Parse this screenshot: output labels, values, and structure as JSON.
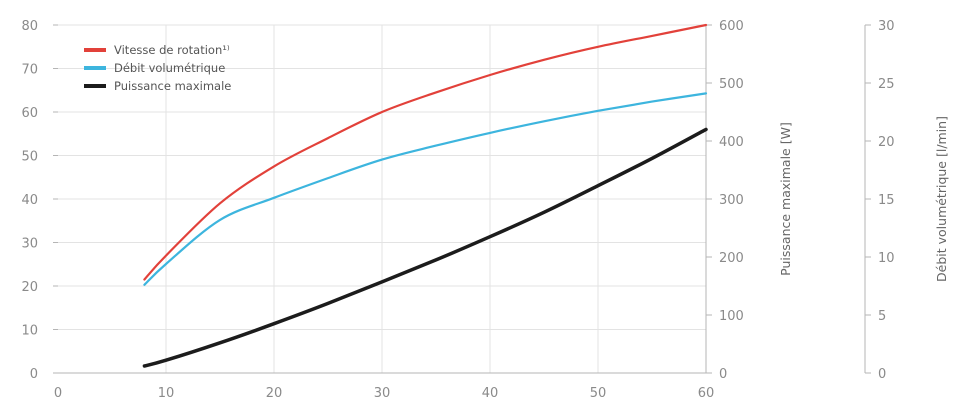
{
  "chart_data": {
    "type": "line",
    "xlim": [
      0,
      60
    ],
    "xticks": [
      "0",
      "10",
      "20",
      "30",
      "40",
      "50",
      "60"
    ],
    "y_left": {
      "label": "",
      "ylim": [
        0,
        80
      ],
      "ticks": [
        "0",
        "10",
        "20",
        "30",
        "40",
        "50",
        "60",
        "70",
        "80"
      ]
    },
    "y_right1": {
      "label": "Puissance maximale [W]",
      "ylim": [
        0,
        600
      ],
      "ticks": [
        "0",
        "100",
        "200",
        "300",
        "400",
        "500",
        "600"
      ]
    },
    "y_right2": {
      "label": "Débit volumétrique [l/min]",
      "ylim": [
        0,
        30
      ],
      "ticks": [
        "0",
        "5",
        "10",
        "15",
        "20",
        "25",
        "30"
      ]
    },
    "grid": true,
    "legend_position": "top-left",
    "series": [
      {
        "name": "Vitesse de rotation¹⁾",
        "color": "#e2413a",
        "axis": "left",
        "x": [
          8,
          10,
          15,
          20,
          25,
          30,
          35,
          40,
          45,
          50,
          55,
          60
        ],
        "y": [
          21.5,
          27,
          39,
          47.5,
          54,
          60,
          64.5,
          68.5,
          72,
          75,
          77.5,
          80
        ]
      },
      {
        "name": "Débit volumétrique",
        "color": "#3db5de",
        "axis": "right2",
        "x": [
          8,
          10,
          15,
          20,
          25,
          30,
          35,
          40,
          45,
          50,
          55,
          60
        ],
        "y": [
          7.6,
          9.4,
          13.2,
          15.1,
          16.8,
          18.4,
          19.6,
          20.7,
          21.7,
          22.6,
          23.4,
          24.1
        ]
      },
      {
        "name": "Puissance maximale",
        "color": "#1c1c1c",
        "axis": "right1",
        "x": [
          8,
          10,
          15,
          20,
          25,
          30,
          35,
          40,
          45,
          50,
          55,
          60
        ],
        "y": [
          12,
          22,
          52,
          85,
          120,
          157,
          195,
          235,
          277,
          323,
          370,
          420
        ]
      }
    ]
  }
}
